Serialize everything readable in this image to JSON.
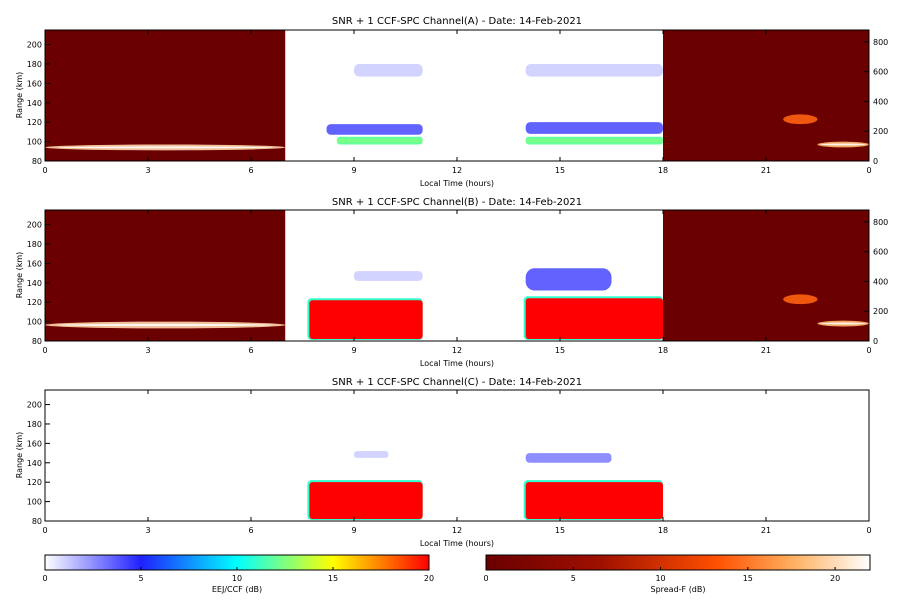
{
  "chart_data": [
    {
      "type": "heatmap",
      "title": "SNR + 1 CCF-SPC Channel(A) - Date: 14-Feb-2021",
      "xlabel": "Local Time (hours)",
      "ylabel": "Range (km)",
      "xlim": [
        0,
        24
      ],
      "ylim": [
        80,
        215
      ],
      "x_ticks": [
        "0",
        "3",
        "6",
        "9",
        "12",
        "15",
        "18",
        "21",
        "0"
      ],
      "y_ticks": [
        "80",
        "100",
        "120",
        "140",
        "160",
        "180",
        "200"
      ],
      "y2lim": [
        0,
        880
      ],
      "y2_ticks": [
        "0",
        "200",
        "400",
        "600",
        "800"
      ],
      "segments": [
        {
          "from": 0,
          "to": 7,
          "colormap": "spread_f",
          "features": [
            {
              "time": [
                0,
                7
              ],
              "range": [
                91,
                97
              ],
              "value_db": 19
            }
          ]
        },
        {
          "from": 7,
          "to": 11,
          "colormap": "eej_ccf",
          "features": [
            {
              "time": [
                8.5,
                11
              ],
              "range": [
                97,
                105
              ],
              "value_db": 12
            },
            {
              "time": [
                8.2,
                11
              ],
              "range": [
                107,
                118
              ],
              "value_db": 5
            },
            {
              "time": [
                9,
                11
              ],
              "range": [
                167,
                180
              ],
              "value_db": 2
            }
          ]
        },
        {
          "from": 14,
          "to": 18,
          "colormap": "eej_ccf",
          "features": [
            {
              "time": [
                14,
                18
              ],
              "range": [
                97,
                105
              ],
              "value_db": 12
            },
            {
              "time": [
                14,
                18
              ],
              "range": [
                108,
                120
              ],
              "value_db": 5
            },
            {
              "time": [
                14,
                18
              ],
              "range": [
                167,
                180
              ],
              "value_db": 2
            }
          ]
        },
        {
          "from": 18,
          "to": 24,
          "colormap": "spread_f",
          "features": [
            {
              "time": [
                21.5,
                22.5
              ],
              "range": [
                118,
                128
              ],
              "value_db": 12
            },
            {
              "time": [
                22.5,
                24
              ],
              "range": [
                94,
                100
              ],
              "value_db": 17
            }
          ]
        }
      ],
      "gaps": [
        [
          11,
          14
        ]
      ]
    },
    {
      "type": "heatmap",
      "title": "SNR + 1 CCF-SPC Channel(B) - Date: 14-Feb-2021",
      "xlabel": "Local Time (hours)",
      "ylabel": "Range (km)",
      "xlim": [
        0,
        24
      ],
      "ylim": [
        80,
        215
      ],
      "x_ticks": [
        "0",
        "3",
        "6",
        "9",
        "12",
        "15",
        "18",
        "21",
        "0"
      ],
      "y_ticks": [
        "80",
        "100",
        "120",
        "140",
        "160",
        "180",
        "200"
      ],
      "y2lim": [
        0,
        880
      ],
      "y2_ticks": [
        "0",
        "200",
        "400",
        "600",
        "800"
      ],
      "segments": [
        {
          "from": 0,
          "to": 7,
          "colormap": "spread_f",
          "features": [
            {
              "time": [
                0,
                7
              ],
              "range": [
                93,
                100
              ],
              "value_db": 19
            }
          ]
        },
        {
          "from": 7,
          "to": 11,
          "colormap": "eej_ccf",
          "features": [
            {
              "time": [
                7.7,
                11
              ],
              "range": [
                82,
                122
              ],
              "value_db": 20
            },
            {
              "time": [
                9,
                11
              ],
              "range": [
                142,
                152
              ],
              "value_db": 2
            }
          ]
        },
        {
          "from": 14,
          "to": 18,
          "colormap": "eej_ccf",
          "features": [
            {
              "time": [
                14,
                18
              ],
              "range": [
                82,
                124
              ],
              "value_db": 20
            },
            {
              "time": [
                14,
                16.5
              ],
              "range": [
                132,
                155
              ],
              "value_db": 5
            }
          ]
        },
        {
          "from": 18,
          "to": 24,
          "colormap": "spread_f",
          "features": [
            {
              "time": [
                21.5,
                22.5
              ],
              "range": [
                118,
                128
              ],
              "value_db": 12
            },
            {
              "time": [
                22.5,
                24
              ],
              "range": [
                95,
                101
              ],
              "value_db": 17
            }
          ]
        }
      ],
      "gaps": [
        [
          11,
          14
        ]
      ]
    },
    {
      "type": "heatmap",
      "title": "SNR + 1 CCF-SPC Channel(C) - Date: 14-Feb-2021",
      "xlabel": "Local Time (hours)",
      "ylabel": "Range (km)",
      "xlim": [
        0,
        24
      ],
      "ylim": [
        80,
        215
      ],
      "x_ticks": [
        "0",
        "3",
        "6",
        "9",
        "12",
        "15",
        "18",
        "21",
        "0"
      ],
      "y_ticks": [
        "80",
        "100",
        "120",
        "140",
        "160",
        "180",
        "200"
      ],
      "segments": [
        {
          "from": 7,
          "to": 11,
          "colormap": "eej_ccf",
          "features": [
            {
              "time": [
                7.7,
                11
              ],
              "range": [
                82,
                120
              ],
              "value_db": 20
            },
            {
              "time": [
                9,
                10
              ],
              "range": [
                145,
                152
              ],
              "value_db": 2
            }
          ]
        },
        {
          "from": 14,
          "to": 18,
          "colormap": "eej_ccf",
          "features": [
            {
              "time": [
                14,
                18
              ],
              "range": [
                82,
                120
              ],
              "value_db": 20
            },
            {
              "time": [
                14,
                16.5
              ],
              "range": [
                140,
                150
              ],
              "value_db": 4
            }
          ]
        }
      ],
      "gaps": [
        [
          0,
          7
        ],
        [
          11,
          14
        ],
        [
          18,
          24
        ]
      ]
    }
  ],
  "colorbars": [
    {
      "label": "EEJ/CCF (dB)",
      "range": [
        0,
        20
      ],
      "ticks": [
        "0",
        "5",
        "10",
        "15",
        "20"
      ],
      "colors": [
        "#ffffff",
        "#2020ff",
        "#00ffff",
        "#ffff00",
        "#ff0000"
      ]
    },
    {
      "label": "Spread-F (dB)",
      "range": [
        0,
        22
      ],
      "ticks": [
        "0",
        "5",
        "10",
        "15",
        "20"
      ],
      "colors": [
        "#6a0000",
        "#a01000",
        "#ff5000",
        "#ffb060",
        "#ffffff"
      ]
    }
  ]
}
